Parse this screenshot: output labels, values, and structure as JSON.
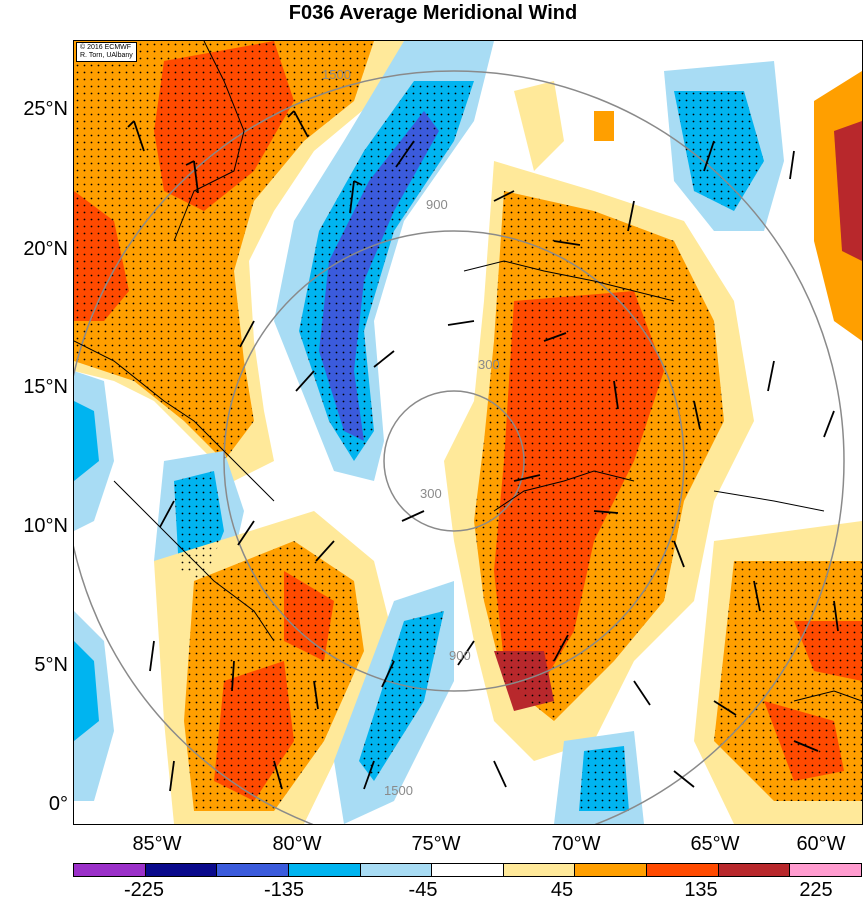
{
  "title": "F036 Average Meridional Wind",
  "credit_lines": [
    "© 2016 ECMWF",
    "R. Torn, UAlbany"
  ],
  "lat_labels": [
    "25°N",
    "20°N",
    "15°N",
    "10°N",
    "5°N",
    "0°"
  ],
  "lon_labels": [
    "85°W",
    "80°W",
    "75°W",
    "70°W",
    "65°W",
    "60°W"
  ],
  "range_ring_labels": [
    "300",
    "900",
    "1500"
  ],
  "colorbar": {
    "colors": [
      "#9b30c9",
      "#0a0a8c",
      "#3b5bdc",
      "#00b4f0",
      "#a8dcf4",
      "#ffffff",
      "#ffe99a",
      "#ff9f00",
      "#ff4a00",
      "#b8282c",
      "#ff9ccf"
    ],
    "labels": [
      "-225",
      "-135",
      "-45",
      "45",
      "135",
      "225"
    ]
  },
  "chart_data": {
    "type": "heatmap",
    "title": "F036 Average Meridional Wind",
    "variable": "meridional wind (shaded), wind barbs, stippling, range rings",
    "color_levels": [
      -225,
      -135,
      -45,
      45,
      135,
      225
    ],
    "lat_ticks": [
      "25°N",
      "20°N",
      "15°N",
      "10°N",
      "5°N",
      "0°"
    ],
    "lon_ticks": [
      "85°W",
      "80°W",
      "75°W",
      "70°W",
      "65°W",
      "60°W"
    ],
    "ring_values": [
      300,
      900,
      1500
    ]
  }
}
